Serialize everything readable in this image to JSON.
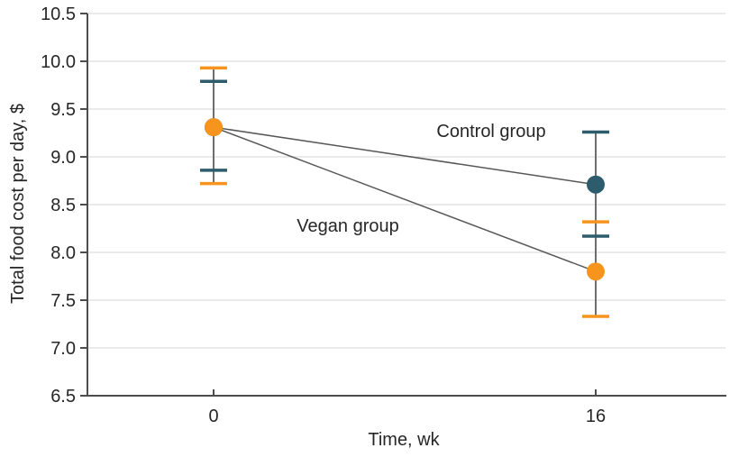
{
  "chart_data": {
    "type": "line",
    "title": "",
    "xlabel": "Time, wk",
    "ylabel": "Total food cost per day, $",
    "x_tick_labels": [
      "0",
      "16"
    ],
    "x_values_wk": [
      0,
      16
    ],
    "ylim": [
      6.5,
      10.5
    ],
    "ytick_labels": [
      "10.5",
      "10.0",
      "9.5",
      "9.0",
      "8.5",
      "8.0",
      "7.5",
      "7.0",
      "6.5"
    ],
    "ytick_values": [
      10.5,
      10.0,
      9.5,
      9.0,
      8.5,
      8.0,
      7.5,
      7.0,
      6.5
    ],
    "grid": true,
    "legend_position": "inline-labels",
    "series": [
      {
        "name": "Control group",
        "slug": "control-group",
        "color": "#2D5D6C",
        "values": [
          9.31,
          8.71
        ],
        "ci_low": [
          8.86,
          8.17
        ],
        "ci_high": [
          9.79,
          9.26
        ]
      },
      {
        "name": "Vegan group",
        "slug": "vegan-group",
        "color": "#F6941E",
        "values": [
          9.31,
          7.8
        ],
        "ci_low": [
          8.72,
          7.33
        ],
        "ci_high": [
          9.93,
          8.32
        ]
      }
    ],
    "style": {
      "background": "#FFFFFF",
      "grid_color": "#E3E3E3",
      "axis_color": "#4D4D4D",
      "errorbar_line_color": "#6E6E6E",
      "connector_line_color": "#575757",
      "text_color": "#262626"
    }
  }
}
